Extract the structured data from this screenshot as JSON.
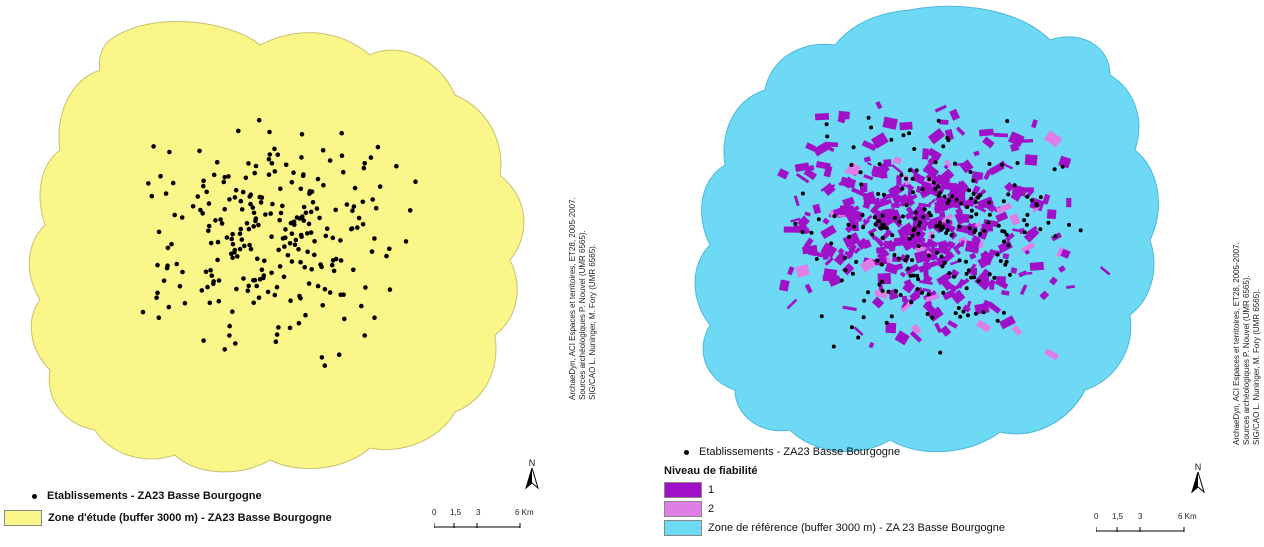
{
  "left_map": {
    "legend": {
      "points_label": "Etablissements - ZA23 Basse Bourgogne",
      "zone_label": "Zone d'étude (buffer 3000 m) - ZA23 Basse Bourgogne"
    },
    "credits": [
      "ArchaeDyn, ACI Espaces et territoires, ET28, 2005-2007.",
      "Sources archéologiques P. Nouvel (UMR 6565).",
      "SIG/CAO L. Nuninger, M. Fory (UMR 6565)."
    ],
    "scale": {
      "ticks": [
        "0",
        "1,5",
        "3",
        "6 Km"
      ]
    },
    "north_label": "N",
    "colors": {
      "zone": "#fbf68a",
      "points": "#000000"
    }
  },
  "right_map": {
    "legend": {
      "points_label": "Etablissements - ZA23 Basse Bourgogne",
      "fiability_title": "Niveau de fiabilité",
      "level_1_label": "1",
      "level_2_label": "2",
      "zone_label": "Zone de référence (buffer 3000 m) - ZA 23 Basse Bourgogne"
    },
    "credits": [
      "ArchaeDyn, ACI Espaces et territoires, ET28, 2005-2007.",
      "Sources archéologiques P. Nouvel (UMR 6565).",
      "SIG/CAO L. Nuninger, M. Fory (UMR 6565)."
    ],
    "scale": {
      "ticks": [
        "0",
        "1,5",
        "3",
        "6 Km"
      ]
    },
    "north_label": "N",
    "colors": {
      "zone": "#6dd9f5",
      "level_1": "#a010c8",
      "level_2": "#e07ee8",
      "points": "#000000"
    }
  }
}
